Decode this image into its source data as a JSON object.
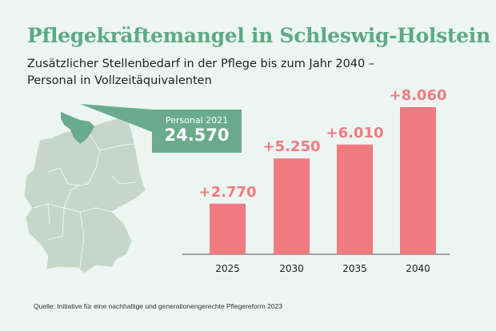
{
  "title": "Pflegekräftemangel in Schleswig-Holstein",
  "subtitle_line1": "Zusätzlicher Stellenbedarf in der Pflege bis zum Jahr 2040 –",
  "subtitle_line2": "Personal in Vollzeitäquivalenten",
  "callout": {
    "label": "Personal 2021",
    "value": "24.570"
  },
  "source": "Quelle: Initiative für eine nachhaltige und generationengerechte Pflegereform 2023",
  "colors": {
    "title": "#5ea987",
    "bar": "#f07b80",
    "label": "#f07b80",
    "map": "#c6d7c9",
    "highlight": "#6aab8e"
  },
  "chart_data": {
    "type": "bar",
    "title": "Zusätzlicher Stellenbedarf in der Pflege bis zum Jahr 2040",
    "categories": [
      "2025",
      "2030",
      "2035",
      "2040"
    ],
    "values": [
      2770,
      5250,
      6010,
      8060
    ],
    "data_labels": [
      "+2.770",
      "+5.250",
      "+6.010",
      "+8.060"
    ],
    "xlabel": "",
    "ylabel": "",
    "ylim": [
      0,
      8060
    ],
    "grid": false
  }
}
